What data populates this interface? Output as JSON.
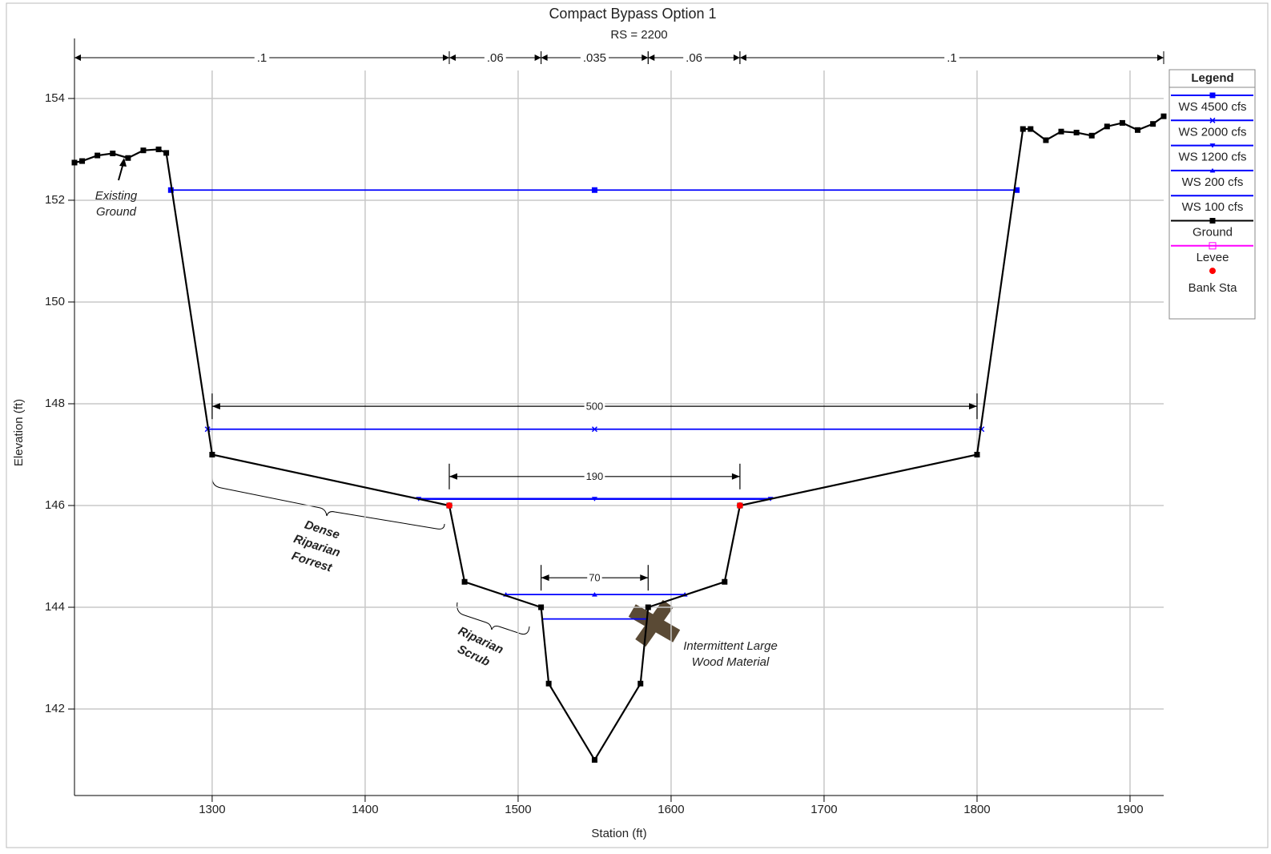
{
  "chart_data": {
    "type": "line",
    "title": "Compact Bypass Option 1",
    "subtitle": "RS = 2200",
    "x_label": "Station (ft)",
    "y_label": "Elevation (ft)",
    "xlim": [
      1210,
      1922
    ],
    "ylim": [
      140.3,
      154.55
    ],
    "xticks": [
      1300,
      1400,
      1500,
      1600,
      1700,
      1800,
      1900
    ],
    "yticks": [
      142,
      144,
      146,
      148,
      150,
      152,
      154
    ],
    "grid": true,
    "legend": {
      "title": "Legend",
      "position": "outside-right"
    },
    "series": [
      {
        "name": "WS 4500 cfs",
        "color": "#0000ff",
        "marker": "square",
        "line": true,
        "x": [
          1273,
          1550,
          1826
        ],
        "values": [
          152.2,
          152.2,
          152.2
        ]
      },
      {
        "name": "WS 2000 cfs",
        "color": "#0000ff",
        "marker": "x",
        "line": true,
        "x": [
          1297,
          1550,
          1803
        ],
        "values": [
          147.5,
          147.5,
          147.5
        ]
      },
      {
        "name": "WS 1200 cfs",
        "color": "#0000ff",
        "marker": "triangle-down",
        "line": true,
        "x": [
          1435,
          1550,
          1665
        ],
        "values": [
          146.13,
          146.13,
          146.13
        ]
      },
      {
        "name": "WS 200 cfs",
        "color": "#0000ff",
        "marker": "triangle-up",
        "line": true,
        "x": [
          1492,
          1550,
          1609
        ],
        "values": [
          144.25,
          144.25,
          144.25
        ]
      },
      {
        "name": "WS 100 cfs",
        "color": "#0000ff",
        "marker": "none",
        "line": true,
        "x": [
          1516,
          1585
        ],
        "values": [
          143.77,
          143.77
        ]
      },
      {
        "name": "Ground",
        "color": "#000000",
        "marker": "square",
        "line": true,
        "x": [
          1210,
          1215,
          1225,
          1235,
          1245,
          1255,
          1265,
          1270,
          1300,
          1455,
          1465,
          1515,
          1520,
          1550,
          1580,
          1585,
          1635,
          1645,
          1800,
          1830,
          1835,
          1845,
          1855,
          1865,
          1875,
          1885,
          1895,
          1905,
          1915,
          1922
        ],
        "values": [
          152.74,
          152.77,
          152.88,
          152.92,
          152.83,
          152.98,
          153.0,
          152.93,
          147.0,
          146.0,
          144.5,
          144.0,
          142.5,
          141.0,
          142.5,
          144.0,
          144.5,
          146.0,
          147.0,
          153.4,
          153.4,
          153.18,
          153.35,
          153.33,
          153.27,
          153.45,
          153.52,
          153.38,
          153.5,
          153.65
        ]
      },
      {
        "name": "Levee",
        "color": "#ff00ff",
        "marker": "square-open",
        "line": true,
        "x": [],
        "values": []
      },
      {
        "name": "Bank Sta",
        "color": "#ff0000",
        "marker": "circle",
        "line": false,
        "x": [
          1455,
          1645
        ],
        "values": [
          146.0,
          146.0
        ]
      }
    ],
    "mannings_n": [
      {
        "label": ".1",
        "from": 1210,
        "to": 1455
      },
      {
        "label": ".06",
        "from": 1455,
        "to": 1515
      },
      {
        "label": ".035",
        "from": 1515,
        "to": 1585
      },
      {
        "label": ".06",
        "from": 1585,
        "to": 1645
      },
      {
        "label": ".1",
        "from": 1645,
        "to": 1922
      }
    ],
    "dimensions": [
      {
        "value": 500,
        "from": 1300,
        "to": 1800,
        "elevation": 147.95
      },
      {
        "value": 190,
        "from": 1455,
        "to": 1645,
        "elevation": 146.57
      },
      {
        "value": 70,
        "from": 1515,
        "to": 1585,
        "elevation": 144.58
      }
    ],
    "annotations": [
      {
        "lines": [
          "Existing",
          "Ground"
        ]
      },
      {
        "lines": [
          "Dense",
          "Riparian",
          "Forrest"
        ]
      },
      {
        "lines": [
          "Riparian",
          "Scrub"
        ]
      },
      {
        "lines": [
          "Intermittent Large",
          "Wood Material"
        ]
      }
    ]
  }
}
